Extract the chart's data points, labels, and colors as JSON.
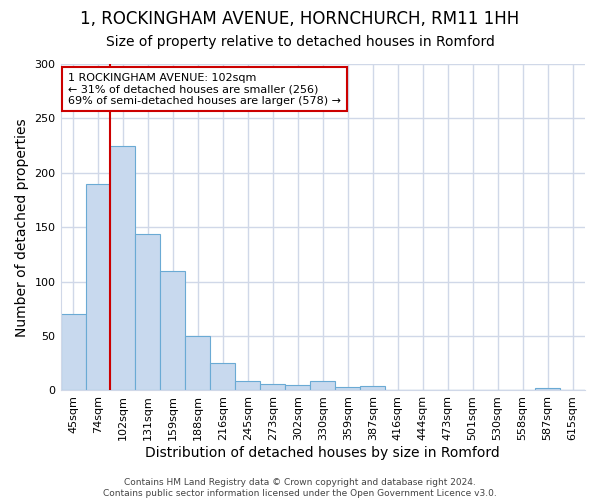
{
  "title_line1": "1, ROCKINGHAM AVENUE, HORNCHURCH, RM11 1HH",
  "title_line2": "Size of property relative to detached houses in Romford",
  "xlabel": "Distribution of detached houses by size in Romford",
  "ylabel": "Number of detached properties",
  "footer": "Contains HM Land Registry data © Crown copyright and database right 2024.\nContains public sector information licensed under the Open Government Licence v3.0.",
  "bin_labels": [
    "45sqm",
    "74sqm",
    "102sqm",
    "131sqm",
    "159sqm",
    "188sqm",
    "216sqm",
    "245sqm",
    "273sqm",
    "302sqm",
    "330sqm",
    "359sqm",
    "387sqm",
    "416sqm",
    "444sqm",
    "473sqm",
    "501sqm",
    "530sqm",
    "558sqm",
    "587sqm",
    "615sqm"
  ],
  "bar_values": [
    70,
    190,
    225,
    144,
    110,
    50,
    25,
    9,
    6,
    5,
    9,
    3,
    4,
    0,
    0,
    0,
    0,
    0,
    0,
    2,
    0
  ],
  "bar_color": "#c8d9ee",
  "bar_edge_color": "#6aaad4",
  "subject_line_index": 2,
  "subject_line_color": "#cc0000",
  "annotation_text": "1 ROCKINGHAM AVENUE: 102sqm\n← 31% of detached houses are smaller (256)\n69% of semi-detached houses are larger (578) →",
  "annotation_box_color": "#ffffff",
  "annotation_box_edge_color": "#cc0000",
  "ylim": [
    0,
    300
  ],
  "yticks": [
    0,
    50,
    100,
    150,
    200,
    250,
    300
  ],
  "background_color": "#ffffff",
  "plot_background_color": "#ffffff",
  "grid_color": "#d0d8e8",
  "title_fontsize": 12,
  "subtitle_fontsize": 10,
  "axis_label_fontsize": 10,
  "tick_fontsize": 8
}
